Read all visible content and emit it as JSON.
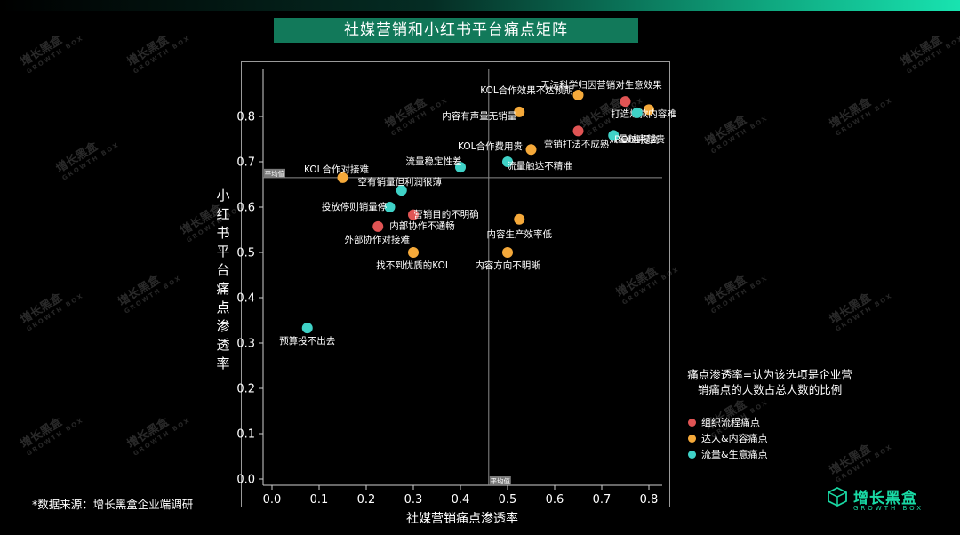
{
  "title": "社媒营销和小红书平台痛点矩阵",
  "source_note": "*数据来源：增长黑盒企业端调研",
  "definition_note": "痛点渗透率=认为该选项是企业营销痛点的人数占总人数的比例",
  "brand": {
    "name": "增长黑盒",
    "sub": "GROWTH BOX"
  },
  "watermark": {
    "text": "增长黑盒",
    "sub": "GROWTH BOX"
  },
  "colors": {
    "org": "#e05454",
    "kol": "#f5a93a",
    "traffic": "#3fd2c7",
    "background": "#000000",
    "accent": "#12795a"
  },
  "chart_data": {
    "type": "scatter",
    "xlabel": "社媒营销痛点渗透率",
    "ylabel": "小红书平台痛点渗透率",
    "xlim": [
      -0.02,
      0.83
    ],
    "ylim": [
      -0.02,
      0.87
    ],
    "xticks": [
      "0.0",
      "0.1",
      "0.2",
      "0.3",
      "0.4",
      "0.5",
      "0.6",
      "0.7",
      "0.8"
    ],
    "yticks": [
      "0.0",
      "0.1",
      "0.2",
      "0.3",
      "0.4",
      "0.5",
      "0.6",
      "0.7",
      "0.8"
    ],
    "mean_x": 0.46,
    "mean_y": 0.665,
    "mean_label": "平均值",
    "legend": [
      {
        "key": "org",
        "label": "组织流程痛点"
      },
      {
        "key": "kol",
        "label": "达人&内容痛点"
      },
      {
        "key": "traffic",
        "label": "流量&生意痛点"
      }
    ],
    "points": [
      {
        "label": "无法科学归因营销对生意效果",
        "x": 0.75,
        "y": 0.833,
        "cat": "org"
      },
      {
        "label": "KOL合作效果不达预期",
        "x": 0.65,
        "y": 0.847,
        "cat": "kol"
      },
      {
        "label": "打造爆款内容难",
        "x": 0.8,
        "y": 0.815,
        "cat": "kol"
      },
      {
        "label": "内容有声量无销量",
        "x": 0.525,
        "y": 0.81,
        "cat": "kol"
      },
      {
        "label": "流量越来越贵",
        "x": 0.775,
        "y": 0.808,
        "cat": "traffic"
      },
      {
        "label": "营销打法不成熟",
        "x": 0.65,
        "y": 0.768,
        "cat": "org"
      },
      {
        "label": "ROI难提高",
        "x": 0.725,
        "y": 0.758,
        "cat": "traffic"
      },
      {
        "label": "KOL合作费用贵",
        "x": 0.55,
        "y": 0.727,
        "cat": "kol"
      },
      {
        "label": "流量触达不精准",
        "x": 0.5,
        "y": 0.7,
        "cat": "traffic"
      },
      {
        "label": "流量稳定性差",
        "x": 0.4,
        "y": 0.688,
        "cat": "traffic"
      },
      {
        "label": "KOL合作对接难",
        "x": 0.15,
        "y": 0.665,
        "cat": "kol"
      },
      {
        "label": "空有销量但利润很薄",
        "x": 0.275,
        "y": 0.637,
        "cat": "traffic"
      },
      {
        "label": "投放停则销量停",
        "x": 0.25,
        "y": 0.6,
        "cat": "traffic"
      },
      {
        "label": "内部协作不通畅",
        "x": 0.3,
        "y": 0.583,
        "cat": "org"
      },
      {
        "label": "营销目的不明确",
        "x": 0.3,
        "y": 0.583,
        "cat": "org",
        "hidden_dot": true
      },
      {
        "label": "内容生产效率低",
        "x": 0.525,
        "y": 0.573,
        "cat": "kol"
      },
      {
        "label": "外部协作对接难",
        "x": 0.225,
        "y": 0.557,
        "cat": "org"
      },
      {
        "label": "找不到优质的KOL",
        "x": 0.3,
        "y": 0.5,
        "cat": "kol"
      },
      {
        "label": "内容方向不明晰",
        "x": 0.5,
        "y": 0.5,
        "cat": "kol"
      },
      {
        "label": "预算投不出去",
        "x": 0.075,
        "y": 0.333,
        "cat": "traffic"
      }
    ]
  }
}
